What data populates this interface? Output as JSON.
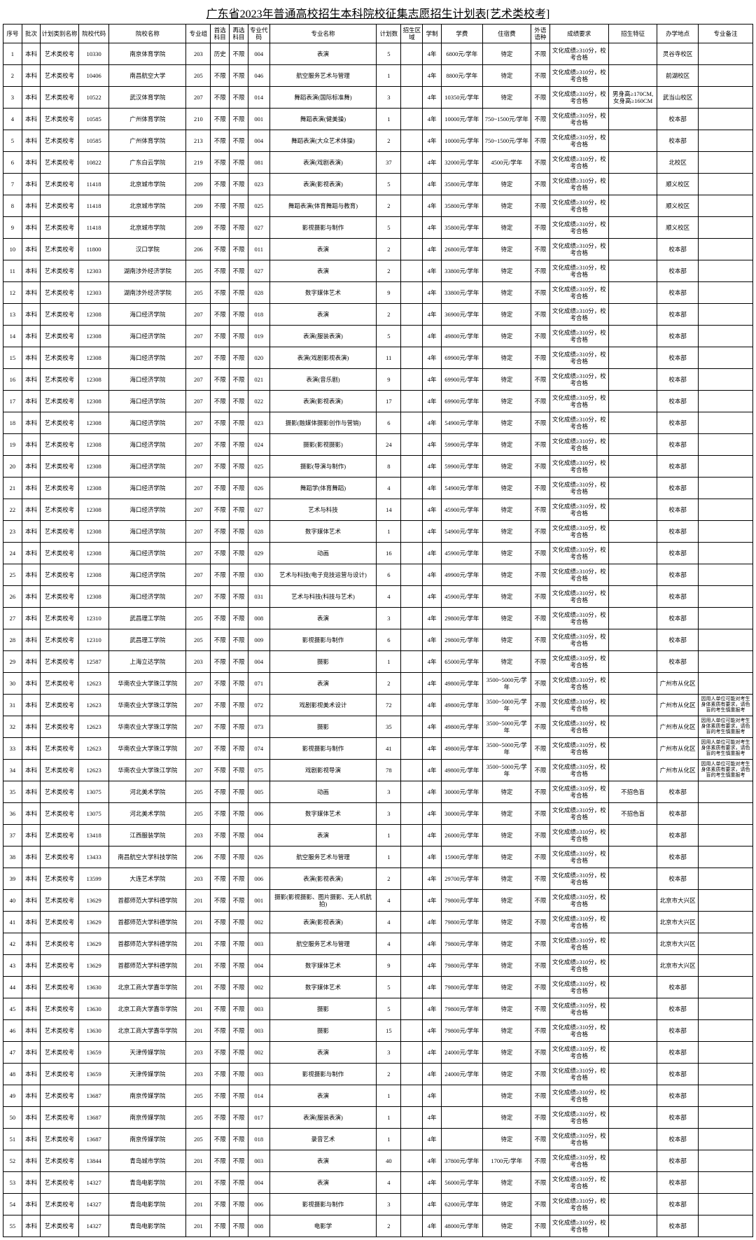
{
  "title": "广东省2023年普通高校招生本科院校征集志愿招生计划表[艺术类校考]",
  "columns": [
    "序号",
    "批次",
    "计划类别名称",
    "院校代码",
    "院校名称",
    "专业组",
    "首选科目",
    "再选科目",
    "专业代码",
    "专业名称",
    "计划数",
    "招生区域",
    "学制",
    "学费",
    "住宿费",
    "外语语种",
    "成绩要求",
    "招生特征",
    "办学地点",
    "专业备注"
  ],
  "default_req": "文化成绩≥310分，校考合格",
  "rows": [
    {
      "n": 1,
      "cat": "艺术类校考",
      "code": "10330",
      "name": "南京体育学院",
      "grp": "203",
      "sx": "历史",
      "mc": "004",
      "mn": "表演",
      "cnt": 5,
      "dur": "4年",
      "fee": "6800元/学年",
      "acc": "待定",
      "loc": "灵谷寺校区"
    },
    {
      "n": 2,
      "cat": "艺术类校考",
      "code": "10406",
      "name": "南昌航空大学",
      "grp": "205",
      "sx": "不限",
      "mc": "046",
      "mn": "航空服务艺术与管理",
      "cnt": 1,
      "dur": "4年",
      "fee": "8800元/学年",
      "acc": "待定",
      "loc": "前湖校区"
    },
    {
      "n": 3,
      "cat": "艺术类校考",
      "code": "10522",
      "name": "武汉体育学院",
      "grp": "207",
      "sx": "不限",
      "mc": "014",
      "mn": "舞蹈表演(国际标准舞)",
      "cnt": 3,
      "dur": "4年",
      "fee": "10350元/学年",
      "acc": "待定",
      "feat": "男身高≥170CM,女身高≥160CM",
      "loc": "武当山校区"
    },
    {
      "n": 4,
      "cat": "艺术类校考",
      "code": "10585",
      "name": "广州体育学院",
      "grp": "210",
      "sx": "不限",
      "mc": "001",
      "mn": "舞蹈表演(健美操)",
      "cnt": 1,
      "dur": "4年",
      "fee": "10000元/学年",
      "acc": "750~1500元/学年",
      "loc": "校本部"
    },
    {
      "n": 5,
      "cat": "艺术类校考",
      "code": "10585",
      "name": "广州体育学院",
      "grp": "213",
      "sx": "不限",
      "mc": "004",
      "mn": "舞蹈表演(大众艺术体操)",
      "cnt": 2,
      "dur": "4年",
      "fee": "10000元/学年",
      "acc": "750~1500元/学年",
      "loc": "校本部"
    },
    {
      "n": 6,
      "cat": "艺术类校考",
      "code": "10822",
      "name": "广东白云学院",
      "grp": "219",
      "sx": "不限",
      "mc": "081",
      "mn": "表演(戏剧表演)",
      "cnt": 37,
      "dur": "4年",
      "fee": "32000元/学年",
      "acc": "4500元/学年",
      "loc": "北校区"
    },
    {
      "n": 7,
      "cat": "艺术类校考",
      "code": "11418",
      "name": "北京城市学院",
      "grp": "209",
      "sx": "不限",
      "mc": "023",
      "mn": "表演(影视表演)",
      "cnt": 5,
      "dur": "4年",
      "fee": "35800元/学年",
      "acc": "待定",
      "loc": "顺义校区"
    },
    {
      "n": 8,
      "cat": "艺术类校考",
      "code": "11418",
      "name": "北京城市学院",
      "grp": "209",
      "sx": "不限",
      "mc": "025",
      "mn": "舞蹈表演(体育舞蹈与教育)",
      "cnt": 2,
      "dur": "4年",
      "fee": "35800元/学年",
      "acc": "待定",
      "loc": "顺义校区"
    },
    {
      "n": 9,
      "cat": "艺术类校考",
      "code": "11418",
      "name": "北京城市学院",
      "grp": "209",
      "sx": "不限",
      "mc": "027",
      "mn": "影视摄影与制作",
      "cnt": 5,
      "dur": "4年",
      "fee": "35800元/学年",
      "acc": "待定",
      "loc": "顺义校区"
    },
    {
      "n": 10,
      "cat": "艺术类校考",
      "code": "11800",
      "name": "汉口学院",
      "grp": "206",
      "sx": "不限",
      "mc": "011",
      "mn": "表演",
      "cnt": 2,
      "dur": "4年",
      "fee": "26800元/学年",
      "acc": "待定",
      "loc": "校本部"
    },
    {
      "n": 11,
      "cat": "艺术类校考",
      "code": "12303",
      "name": "湖南涉外经济学院",
      "grp": "205",
      "sx": "不限",
      "mc": "027",
      "mn": "表演",
      "cnt": 2,
      "dur": "4年",
      "fee": "33800元/学年",
      "acc": "待定",
      "loc": "校本部"
    },
    {
      "n": 12,
      "cat": "艺术类校考",
      "code": "12303",
      "name": "湖南涉外经济学院",
      "grp": "205",
      "sx": "不限",
      "mc": "028",
      "mn": "数字媒体艺术",
      "cnt": 9,
      "dur": "4年",
      "fee": "33800元/学年",
      "acc": "待定",
      "loc": "校本部"
    },
    {
      "n": 13,
      "cat": "艺术类校考",
      "code": "12308",
      "name": "海口经济学院",
      "grp": "207",
      "sx": "不限",
      "mc": "018",
      "mn": "表演",
      "cnt": 2,
      "dur": "4年",
      "fee": "36900元/学年",
      "acc": "待定",
      "loc": "校本部"
    },
    {
      "n": 14,
      "cat": "艺术类校考",
      "code": "12308",
      "name": "海口经济学院",
      "grp": "207",
      "sx": "不限",
      "mc": "019",
      "mn": "表演(服装表演)",
      "cnt": 5,
      "dur": "4年",
      "fee": "49800元/学年",
      "acc": "待定",
      "loc": "校本部"
    },
    {
      "n": 15,
      "cat": "艺术类校考",
      "code": "12308",
      "name": "海口经济学院",
      "grp": "207",
      "sx": "不限",
      "mc": "020",
      "mn": "表演(戏剧影视表演)",
      "cnt": 11,
      "dur": "4年",
      "fee": "69900元/学年",
      "acc": "待定",
      "loc": "校本部"
    },
    {
      "n": 16,
      "cat": "艺术类校考",
      "code": "12308",
      "name": "海口经济学院",
      "grp": "207",
      "sx": "不限",
      "mc": "021",
      "mn": "表演(音乐剧)",
      "cnt": 9,
      "dur": "4年",
      "fee": "69900元/学年",
      "acc": "待定",
      "loc": "校本部"
    },
    {
      "n": 17,
      "cat": "艺术类校考",
      "code": "12308",
      "name": "海口经济学院",
      "grp": "207",
      "sx": "不限",
      "mc": "022",
      "mn": "表演(影视表演)",
      "cnt": 17,
      "dur": "4年",
      "fee": "69900元/学年",
      "acc": "待定",
      "loc": "校本部"
    },
    {
      "n": 18,
      "cat": "艺术类校考",
      "code": "12308",
      "name": "海口经济学院",
      "grp": "207",
      "sx": "不限",
      "mc": "023",
      "mn": "摄影(融媒体摄影创作与营销)",
      "cnt": 6,
      "dur": "4年",
      "fee": "54900元/学年",
      "acc": "待定",
      "loc": "校本部"
    },
    {
      "n": 19,
      "cat": "艺术类校考",
      "code": "12308",
      "name": "海口经济学院",
      "grp": "207",
      "sx": "不限",
      "mc": "024",
      "mn": "摄影(影视摄影)",
      "cnt": 24,
      "dur": "4年",
      "fee": "59900元/学年",
      "acc": "待定",
      "loc": "校本部"
    },
    {
      "n": 20,
      "cat": "艺术类校考",
      "code": "12308",
      "name": "海口经济学院",
      "grp": "207",
      "sx": "不限",
      "mc": "025",
      "mn": "摄影(导演与制作)",
      "cnt": 8,
      "dur": "4年",
      "fee": "59900元/学年",
      "acc": "待定",
      "loc": "校本部"
    },
    {
      "n": 21,
      "cat": "艺术类校考",
      "code": "12308",
      "name": "海口经济学院",
      "grp": "207",
      "sx": "不限",
      "mc": "026",
      "mn": "舞蹈学(体育舞蹈)",
      "cnt": 4,
      "dur": "4年",
      "fee": "54900元/学年",
      "acc": "待定",
      "loc": "校本部"
    },
    {
      "n": 22,
      "cat": "艺术类校考",
      "code": "12308",
      "name": "海口经济学院",
      "grp": "207",
      "sx": "不限",
      "mc": "027",
      "mn": "艺术与科技",
      "cnt": 14,
      "dur": "4年",
      "fee": "45900元/学年",
      "acc": "待定",
      "loc": "校本部"
    },
    {
      "n": 23,
      "cat": "艺术类校考",
      "code": "12308",
      "name": "海口经济学院",
      "grp": "207",
      "sx": "不限",
      "mc": "028",
      "mn": "数字媒体艺术",
      "cnt": 1,
      "dur": "4年",
      "fee": "54900元/学年",
      "acc": "待定",
      "loc": "校本部"
    },
    {
      "n": 24,
      "cat": "艺术类校考",
      "code": "12308",
      "name": "海口经济学院",
      "grp": "207",
      "sx": "不限",
      "mc": "029",
      "mn": "动画",
      "cnt": 16,
      "dur": "4年",
      "fee": "45900元/学年",
      "acc": "待定",
      "loc": "校本部"
    },
    {
      "n": 25,
      "cat": "艺术类校考",
      "code": "12308",
      "name": "海口经济学院",
      "grp": "207",
      "sx": "不限",
      "mc": "030",
      "mn": "艺术与科技(电子竞技运营与设计)",
      "cnt": 6,
      "dur": "4年",
      "fee": "49900元/学年",
      "acc": "待定",
      "loc": "校本部"
    },
    {
      "n": 26,
      "cat": "艺术类校考",
      "code": "12308",
      "name": "海口经济学院",
      "grp": "207",
      "sx": "不限",
      "mc": "031",
      "mn": "艺术与科技(科技与艺术)",
      "cnt": 4,
      "dur": "4年",
      "fee": "45900元/学年",
      "acc": "待定",
      "loc": "校本部"
    },
    {
      "n": 27,
      "cat": "艺术类校考",
      "code": "12310",
      "name": "武昌理工学院",
      "grp": "205",
      "sx": "不限",
      "mc": "008",
      "mn": "表演",
      "cnt": 3,
      "dur": "4年",
      "fee": "29800元/学年",
      "acc": "待定",
      "loc": "校本部"
    },
    {
      "n": 28,
      "cat": "艺术类校考",
      "code": "12310",
      "name": "武昌理工学院",
      "grp": "205",
      "sx": "不限",
      "mc": "009",
      "mn": "影视摄影与制作",
      "cnt": 6,
      "dur": "4年",
      "fee": "29800元/学年",
      "acc": "待定",
      "loc": "校本部"
    },
    {
      "n": 29,
      "cat": "艺术类校考",
      "code": "12587",
      "name": "上海立达学院",
      "grp": "203",
      "sx": "不限",
      "mc": "004",
      "mn": "摄影",
      "cnt": 1,
      "dur": "4年",
      "fee": "65000元/学年",
      "acc": "待定",
      "loc": "校本部"
    },
    {
      "n": 30,
      "cat": "艺术类校考",
      "code": "12623",
      "name": "华南农业大学珠江学院",
      "grp": "207",
      "sx": "不限",
      "mc": "071",
      "mn": "表演",
      "cnt": 2,
      "dur": "4年",
      "fee": "49800元/学年",
      "acc": "3500~5000元/学年",
      "loc": "广州市从化区"
    },
    {
      "n": 31,
      "cat": "艺术类校考",
      "code": "12623",
      "name": "华南农业大学珠江学院",
      "grp": "207",
      "sx": "不限",
      "mc": "072",
      "mn": "戏剧影视美术设计",
      "cnt": 72,
      "dur": "4年",
      "fee": "49800元/学年",
      "acc": "3500~5000元/学年",
      "loc": "广州市从化区",
      "note": "因用人单位可能对考生身体素质有要求，请色盲的考生慎重报考"
    },
    {
      "n": 32,
      "cat": "艺术类校考",
      "code": "12623",
      "name": "华南农业大学珠江学院",
      "grp": "207",
      "sx": "不限",
      "mc": "073",
      "mn": "摄影",
      "cnt": 35,
      "dur": "4年",
      "fee": "49800元/学年",
      "acc": "3500~5000元/学年",
      "loc": "广州市从化区",
      "note": "因用人单位可能对考生身体素质有要求，请色盲的考生慎重报考"
    },
    {
      "n": 33,
      "cat": "艺术类校考",
      "code": "12623",
      "name": "华南农业大学珠江学院",
      "grp": "207",
      "sx": "不限",
      "mc": "074",
      "mn": "影视摄影与制作",
      "cnt": 41,
      "dur": "4年",
      "fee": "49800元/学年",
      "acc": "3500~5000元/学年",
      "loc": "广州市从化区",
      "note": "因用人单位可能对考生身体素质有要求，请色盲的考生慎重报考"
    },
    {
      "n": 34,
      "cat": "艺术类校考",
      "code": "12623",
      "name": "华南农业大学珠江学院",
      "grp": "207",
      "sx": "不限",
      "mc": "075",
      "mn": "戏剧影视导演",
      "cnt": 78,
      "dur": "4年",
      "fee": "49800元/学年",
      "acc": "3500~5000元/学年",
      "loc": "广州市从化区",
      "note": "因用人单位可能对考生身体素质有要求，请色盲的考生慎重报考"
    },
    {
      "n": 35,
      "cat": "艺术类校考",
      "code": "13075",
      "name": "河北美术学院",
      "grp": "205",
      "sx": "不限",
      "mc": "005",
      "mn": "动画",
      "cnt": 3,
      "dur": "4年",
      "fee": "30000元/学年",
      "acc": "待定",
      "feat": "不招色盲",
      "loc": "校本部"
    },
    {
      "n": 36,
      "cat": "艺术类校考",
      "code": "13075",
      "name": "河北美术学院",
      "grp": "205",
      "sx": "不限",
      "mc": "006",
      "mn": "数字媒体艺术",
      "cnt": 3,
      "dur": "4年",
      "fee": "30000元/学年",
      "acc": "待定",
      "feat": "不招色盲",
      "loc": "校本部"
    },
    {
      "n": 37,
      "cat": "艺术类校考",
      "code": "13418",
      "name": "江西服装学院",
      "grp": "203",
      "sx": "不限",
      "mc": "004",
      "mn": "表演",
      "cnt": 1,
      "dur": "4年",
      "fee": "26000元/学年",
      "acc": "待定",
      "loc": "校本部"
    },
    {
      "n": 38,
      "cat": "艺术类校考",
      "code": "13433",
      "name": "南昌航空大学科技学院",
      "grp": "206",
      "sx": "不限",
      "mc": "026",
      "mn": "航空服务艺术与管理",
      "cnt": 1,
      "dur": "4年",
      "fee": "15900元/学年",
      "acc": "待定",
      "loc": "校本部"
    },
    {
      "n": 39,
      "cat": "艺术类校考",
      "code": "13599",
      "name": "大连艺术学院",
      "grp": "203",
      "sx": "不限",
      "mc": "006",
      "mn": "表演(影视表演)",
      "cnt": 2,
      "dur": "4年",
      "fee": "29700元/学年",
      "acc": "待定",
      "loc": "校本部"
    },
    {
      "n": 40,
      "cat": "艺术类校考",
      "code": "13629",
      "name": "首都师范大学科德学院",
      "grp": "201",
      "sx": "不限",
      "mc": "001",
      "mn": "摄影(影视摄影、图片摄影、无人机航拍)",
      "cnt": 4,
      "dur": "4年",
      "fee": "79800元/学年",
      "acc": "待定",
      "loc": "北京市大兴区"
    },
    {
      "n": 41,
      "cat": "艺术类校考",
      "code": "13629",
      "name": "首都师范大学科德学院",
      "grp": "201",
      "sx": "不限",
      "mc": "002",
      "mn": "表演(影视表演)",
      "cnt": 4,
      "dur": "4年",
      "fee": "79800元/学年",
      "acc": "待定",
      "loc": "北京市大兴区"
    },
    {
      "n": 42,
      "cat": "艺术类校考",
      "code": "13629",
      "name": "首都师范大学科德学院",
      "grp": "201",
      "sx": "不限",
      "mc": "003",
      "mn": "航空服务艺术与管理",
      "cnt": 4,
      "dur": "4年",
      "fee": "79800元/学年",
      "acc": "待定",
      "loc": "北京市大兴区"
    },
    {
      "n": 43,
      "cat": "艺术类校考",
      "code": "13629",
      "name": "首都师范大学科德学院",
      "grp": "201",
      "sx": "不限",
      "mc": "004",
      "mn": "数字媒体艺术",
      "cnt": 9,
      "dur": "4年",
      "fee": "79800元/学年",
      "acc": "待定",
      "loc": "北京市大兴区"
    },
    {
      "n": 44,
      "cat": "艺术类校考",
      "code": "13630",
      "name": "北京工商大学嘉华学院",
      "grp": "201",
      "sx": "不限",
      "mc": "002",
      "mn": "数字媒体艺术",
      "cnt": 5,
      "dur": "4年",
      "fee": "79800元/学年",
      "acc": "待定",
      "loc": "校本部"
    },
    {
      "n": 45,
      "cat": "艺术类校考",
      "code": "13630",
      "name": "北京工商大学嘉华学院",
      "grp": "201",
      "sx": "不限",
      "mc": "003",
      "mn": "摄影",
      "cnt": 5,
      "dur": "4年",
      "fee": "79800元/学年",
      "acc": "待定",
      "loc": "校本部"
    },
    {
      "n": 46,
      "cat": "艺术类校考",
      "code": "13630",
      "name": "北京工商大学嘉华学院",
      "grp": "201",
      "sx": "不限",
      "mc": "003",
      "mn": "摄影",
      "cnt": 15,
      "dur": "4年",
      "fee": "79800元/学年",
      "acc": "待定",
      "loc": "校本部"
    },
    {
      "n": 47,
      "cat": "艺术类校考",
      "code": "13659",
      "name": "天津传媒学院",
      "grp": "203",
      "sx": "不限",
      "mc": "002",
      "mn": "表演",
      "cnt": 3,
      "dur": "4年",
      "fee": "24000元/学年",
      "acc": "待定",
      "loc": "校本部"
    },
    {
      "n": 48,
      "cat": "艺术类校考",
      "code": "13659",
      "name": "天津传媒学院",
      "grp": "203",
      "sx": "不限",
      "mc": "003",
      "mn": "影视摄影与制作",
      "cnt": 2,
      "dur": "4年",
      "fee": "24000元/学年",
      "acc": "待定",
      "loc": "校本部"
    },
    {
      "n": 49,
      "cat": "艺术类校考",
      "code": "13687",
      "name": "南京传媒学院",
      "grp": "205",
      "sx": "不限",
      "mc": "014",
      "mn": "表演",
      "cnt": 1,
      "dur": "4年",
      "fee": "",
      "acc": "待定",
      "loc": "校本部"
    },
    {
      "n": 50,
      "cat": "艺术类校考",
      "code": "13687",
      "name": "南京传媒学院",
      "grp": "205",
      "sx": "不限",
      "mc": "017",
      "mn": "表演(服装表演)",
      "cnt": 1,
      "dur": "4年",
      "fee": "",
      "acc": "待定",
      "loc": "校本部"
    },
    {
      "n": 51,
      "cat": "艺术类校考",
      "code": "13687",
      "name": "南京传媒学院",
      "grp": "205",
      "sx": "不限",
      "mc": "018",
      "mn": "录音艺术",
      "cnt": 1,
      "dur": "4年",
      "fee": "",
      "acc": "待定",
      "loc": "校本部"
    },
    {
      "n": 52,
      "cat": "艺术类校考",
      "code": "13844",
      "name": "青岛城市学院",
      "grp": "201",
      "sx": "不限",
      "mc": "003",
      "mn": "表演",
      "cnt": 40,
      "dur": "4年",
      "fee": "37800元/学年",
      "acc": "1700元/学年",
      "loc": "校本部"
    },
    {
      "n": 53,
      "cat": "艺术类校考",
      "code": "14327",
      "name": "青岛电影学院",
      "grp": "201",
      "sx": "不限",
      "mc": "004",
      "mn": "表演",
      "cnt": 4,
      "dur": "4年",
      "fee": "56000元/学年",
      "acc": "待定",
      "loc": "校本部"
    },
    {
      "n": 54,
      "cat": "艺术类校考",
      "code": "14327",
      "name": "青岛电影学院",
      "grp": "201",
      "sx": "不限",
      "mc": "006",
      "mn": "影视摄影与制作",
      "cnt": 3,
      "dur": "4年",
      "fee": "62000元/学年",
      "acc": "待定",
      "loc": "校本部"
    },
    {
      "n": 55,
      "cat": "艺术类校考",
      "code": "14327",
      "name": "青岛电影学院",
      "grp": "201",
      "sx": "不限",
      "mc": "008",
      "mn": "电影学",
      "cnt": 2,
      "dur": "4年",
      "fee": "48000元/学年",
      "acc": "待定",
      "loc": "校本部"
    }
  ]
}
